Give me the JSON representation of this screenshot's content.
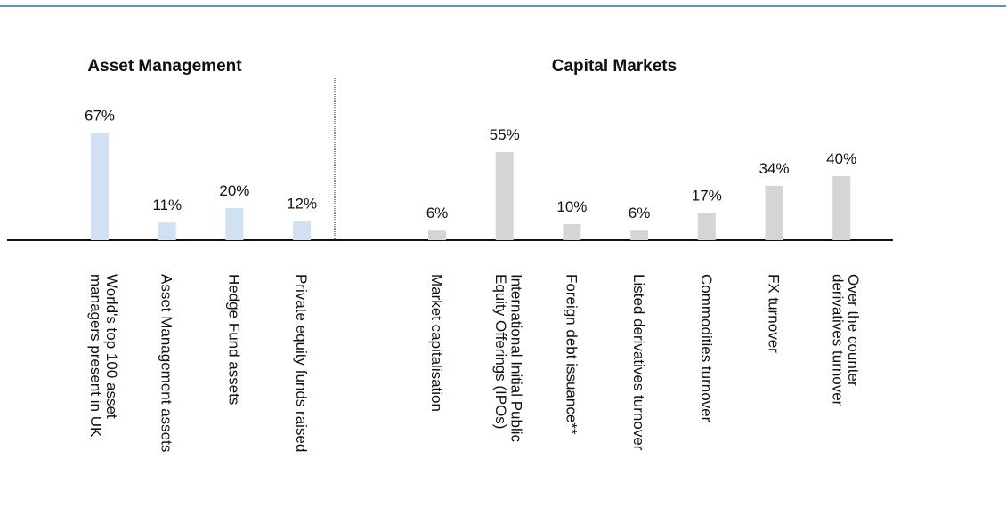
{
  "chart_data": [
    {
      "type": "bar",
      "title": "Asset Management",
      "categories": [
        "World's top 100 asset\nmanagers present in UK",
        "Asset Management assets",
        "Hedge Fund assets",
        "Private equity funds raised"
      ],
      "values": [
        67,
        11,
        20,
        12
      ],
      "value_labels": [
        "67%",
        "11%",
        "20%",
        "12%"
      ],
      "color": "#cfe1f2"
    },
    {
      "type": "bar",
      "title": "Capital Markets",
      "categories": [
        "Market capitalisation",
        "International Initial Public\nEquity Offerings (IPOs)",
        "Foreign debt issuance**",
        "Listed derivatives turnover",
        "Commodities turnover",
        "FX turnover",
        "Over the counter\nderivatives turnover"
      ],
      "values": [
        6,
        55,
        10,
        6,
        17,
        34,
        40
      ],
      "value_labels": [
        "6%",
        "55%",
        "10%",
        "6%",
        "17%",
        "34%",
        "40%"
      ],
      "color": "#d5d5d5"
    }
  ]
}
